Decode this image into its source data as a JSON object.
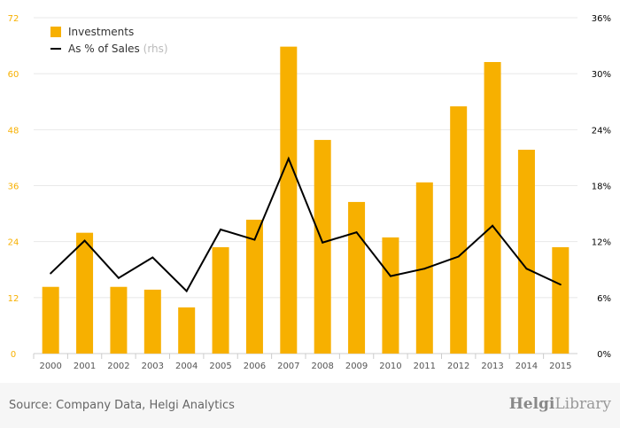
{
  "chart_data": {
    "type": "bar",
    "categories": [
      "2000",
      "2001",
      "2002",
      "2003",
      "2004",
      "2005",
      "2006",
      "2007",
      "2008",
      "2009",
      "2010",
      "2011",
      "2012",
      "2013",
      "2014",
      "2015"
    ],
    "series": [
      {
        "name": "Investments",
        "type": "bar",
        "axis": "left",
        "color": "#f7b000",
        "values": [
          14.3,
          25.9,
          14.3,
          13.7,
          9.9,
          22.8,
          28.7,
          65.8,
          45.8,
          32.5,
          24.9,
          36.7,
          53.0,
          62.5,
          43.7,
          22.8
        ]
      },
      {
        "name": "As % of Sales",
        "suffix": "(rhs)",
        "type": "line",
        "axis": "right",
        "color": "#000000",
        "values": [
          8.6,
          12.1,
          8.1,
          10.3,
          6.7,
          13.3,
          12.2,
          20.9,
          11.9,
          13.0,
          8.3,
          9.1,
          10.4,
          13.7,
          9.1,
          7.4
        ]
      }
    ],
    "left_ticks": [
      "0",
      "12",
      "24",
      "36",
      "48",
      "60",
      "72"
    ],
    "right_ticks": [
      "0%",
      "6%",
      "12%",
      "18%",
      "24%",
      "30%",
      "36%"
    ],
    "ylim": [
      0,
      72
    ],
    "ylim_right": [
      0,
      36
    ],
    "legend_placement": "top-left",
    "grid": true
  },
  "footer": {
    "source": "Source: Company Data, Helgi Analytics",
    "logo_bold": "Helgi",
    "logo_light": "Library"
  }
}
